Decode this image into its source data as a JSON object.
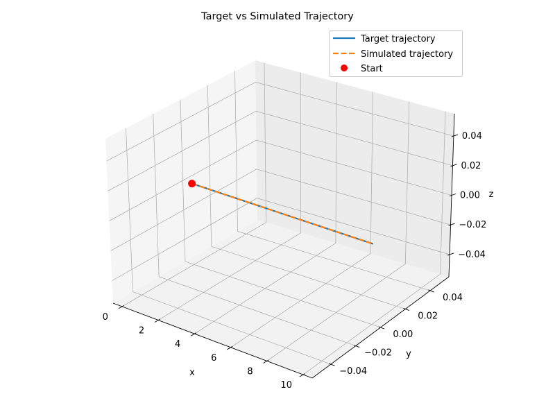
{
  "chart_data": {
    "type": "line",
    "projection": "3d",
    "title": "Target vs Simulated Trajectory",
    "xlabel": "x",
    "ylabel": "y",
    "zlabel": "z",
    "xlim": [
      -0.5,
      10.5
    ],
    "ylim": [
      -0.055,
      0.055
    ],
    "zlim": [
      -0.055,
      0.055
    ],
    "x_ticks": [
      0,
      2,
      4,
      6,
      8,
      10
    ],
    "x_tick_labels": [
      "0",
      "2",
      "4",
      "6",
      "8",
      "10"
    ],
    "y_ticks": [
      -0.04,
      -0.02,
      0.0,
      0.02,
      0.04
    ],
    "y_tick_labels": [
      "−0.04",
      "−0.02",
      "0.00",
      "0.02",
      "0.04"
    ],
    "z_ticks": [
      -0.04,
      -0.02,
      0.0,
      0.02,
      0.04
    ],
    "z_tick_labels": [
      "−0.04",
      "−0.02",
      "0.00",
      "0.02",
      "0.04"
    ],
    "grid": true,
    "legend_position": "top-right",
    "series": [
      {
        "name": "Target trajectory",
        "style": "solid",
        "color": "#1f77b4",
        "x": [
          0,
          10
        ],
        "y": [
          0,
          0
        ],
        "z": [
          0,
          0
        ]
      },
      {
        "name": "Simulated trajectory",
        "style": "dashed",
        "color": "#ff7f0e",
        "x": [
          0,
          10
        ],
        "y": [
          0,
          0
        ],
        "z": [
          0,
          0
        ]
      }
    ],
    "markers": [
      {
        "name": "Start",
        "color": "#ff0000",
        "x": 0,
        "y": 0,
        "z": 0
      }
    ]
  }
}
